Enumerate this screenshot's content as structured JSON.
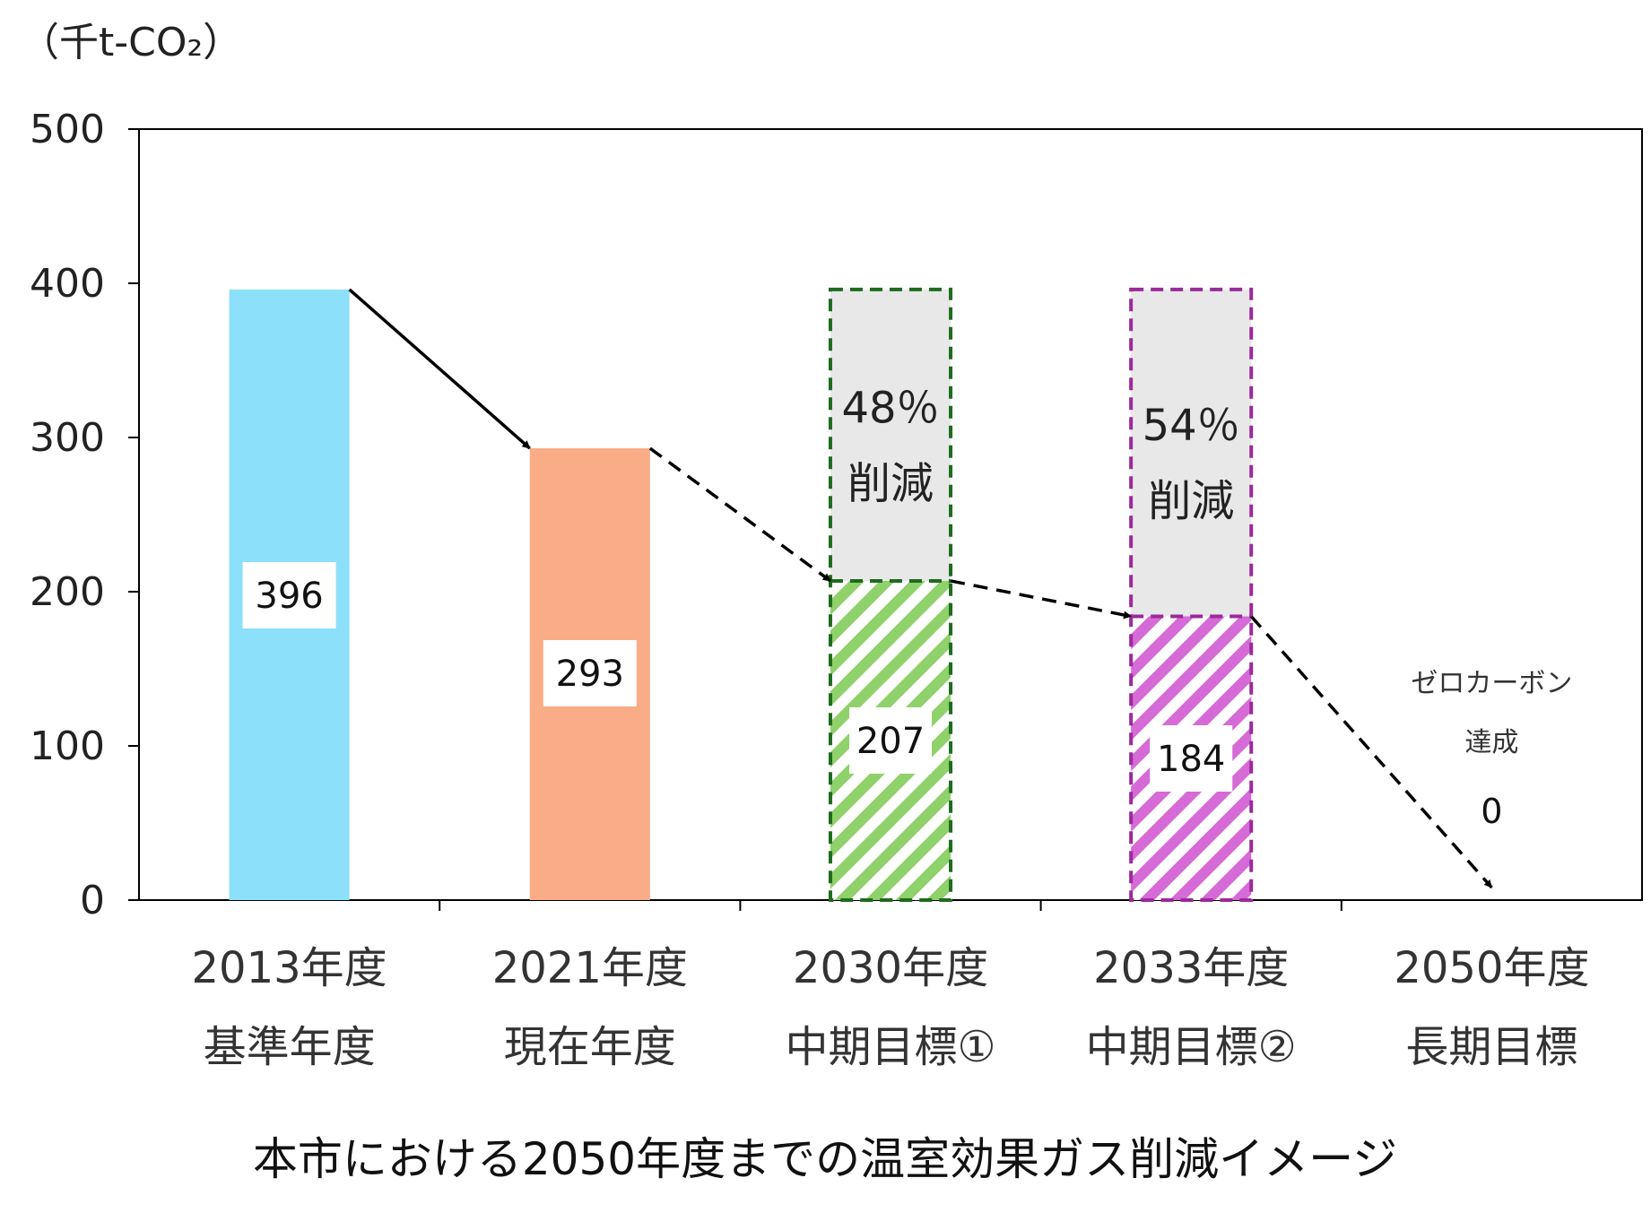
{
  "chart_data": {
    "type": "bar",
    "unit_label": "（千t-CO₂）",
    "title": "本市における2050年度までの温室効果ガス削減イメージ",
    "ylim": [
      0,
      500
    ],
    "yticks": [
      0,
      100,
      200,
      300,
      400,
      500
    ],
    "grid": false,
    "categories": [
      {
        "year": "2013年度",
        "sub": "基準年度"
      },
      {
        "year": "2021年度",
        "sub": "現在年度"
      },
      {
        "year": "2030年度",
        "sub": "中期目標①"
      },
      {
        "year": "2033年度",
        "sub": "中期目標②"
      },
      {
        "year": "2050年度",
        "sub": "長期目標"
      }
    ],
    "values": [
      396,
      293,
      207,
      184,
      0
    ],
    "value_labels": [
      "396",
      "293",
      "207",
      "184",
      "0"
    ],
    "baseline": 396,
    "reductions": [
      {
        "category_index": 2,
        "percent": "48％",
        "label": "削減",
        "border_color": "#1f6b1f"
      },
      {
        "category_index": 3,
        "percent": "54％",
        "label": "削減",
        "border_color": "#9b2a9b"
      }
    ],
    "bar_styles": [
      {
        "fill": "#8de0fa",
        "pattern": "solid"
      },
      {
        "fill": "#f9ac85",
        "pattern": "solid"
      },
      {
        "fill": "#8fd16a",
        "pattern": "hatch"
      },
      {
        "fill": "#d66ad6",
        "pattern": "hatch"
      },
      {
        "fill": "none",
        "pattern": "none"
      }
    ],
    "reduction_fill": "#e8e8e8",
    "annotation": {
      "category_index": 4,
      "line1": "ゼロカーボン",
      "line2": "達成"
    }
  }
}
